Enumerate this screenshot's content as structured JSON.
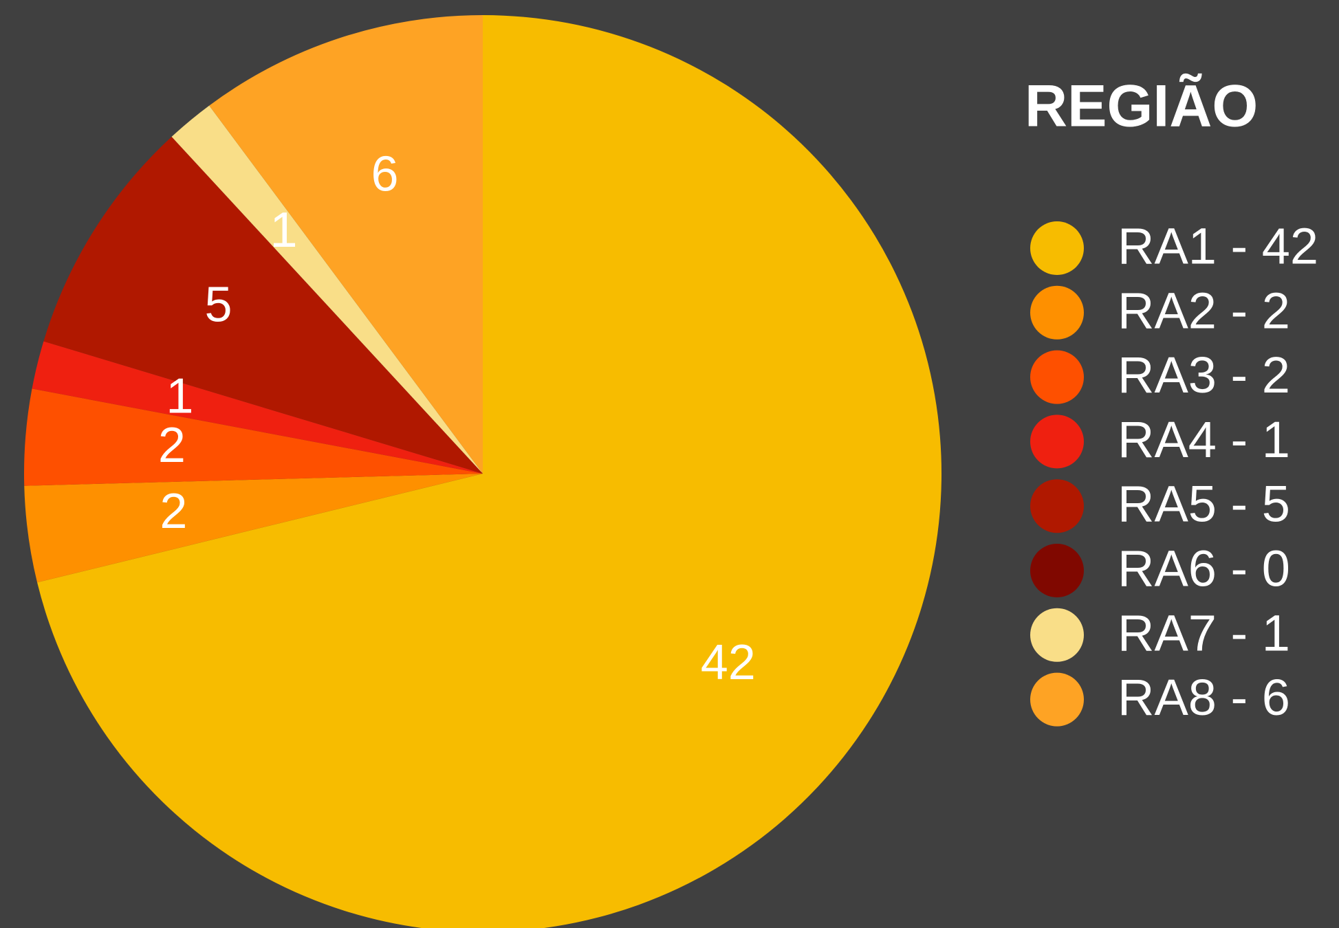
{
  "chart_data": {
    "type": "pie",
    "legend_title": "REGIÃO",
    "categories": [
      "RA1 - 42",
      "RA2 - 2",
      "RA3 - 2",
      "RA4 - 1",
      "RA5 - 5",
      "RA6 - 0",
      "RA7 - 1",
      "RA8 - 6"
    ],
    "values": [
      42,
      2,
      2,
      1,
      5,
      0,
      1,
      6
    ],
    "colors": [
      "#f7bc00",
      "#fe9000",
      "#fe5000",
      "#ef2010",
      "#b01800",
      "#800800",
      "#f9de88",
      "#fea324"
    ],
    "legend": "right"
  }
}
